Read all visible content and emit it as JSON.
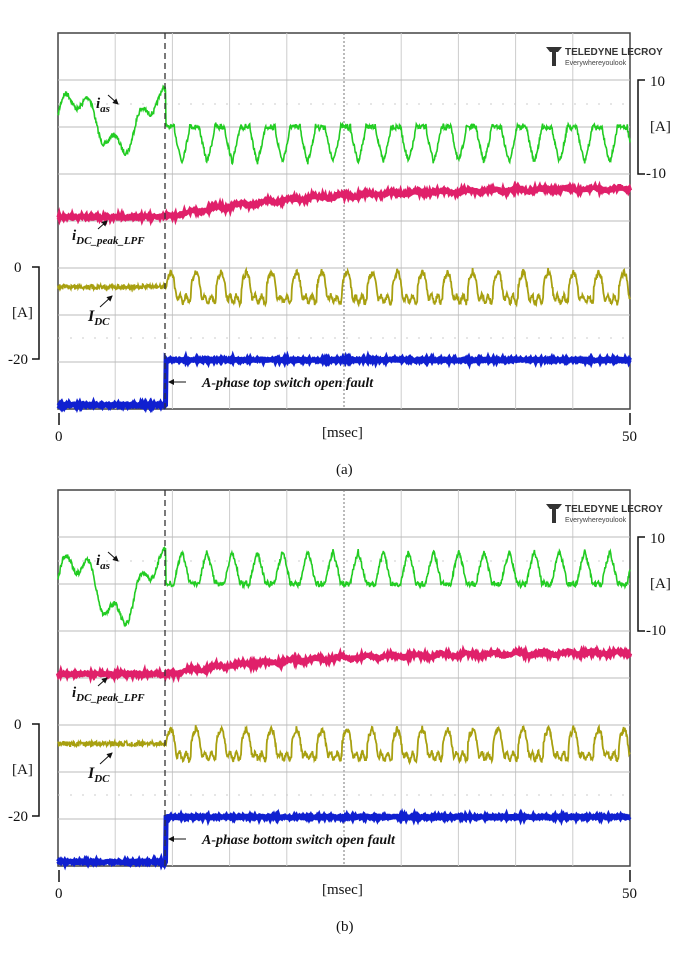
{
  "chart_data": {
    "type": "line",
    "title": "",
    "xlabel": "[msec]",
    "x_ticks": [
      "0",
      "50"
    ],
    "xlim": [
      0,
      50
    ],
    "grid": true,
    "logo": {
      "brand": "TELEDYNE LECROY",
      "tagline": "Everywhereyoulook"
    },
    "right_axis": {
      "ticks": [
        "10",
        "-10"
      ],
      "unit": "[A]",
      "range": [
        -10,
        10
      ]
    },
    "left_axis": {
      "ticks": [
        "0",
        "-20"
      ],
      "unit": "[A]",
      "range": [
        -20,
        0
      ]
    },
    "fundamental_period_ms": 2.2,
    "fault_time_ms": 9.4,
    "panels": [
      {
        "caption": "(a)",
        "fault_label": "A-phase top switch open fault",
        "series": [
          {
            "name": "i",
            "sub": "as",
            "color": "#22cc22",
            "unit": "A",
            "pre_fault_amplitude": 6.5,
            "post_fault": "negative half-cycles only",
            "post_min": -7.5,
            "post_max": 0.5
          },
          {
            "name": "i",
            "sub": "DC_peak_LPF",
            "color": "#e0206a",
            "pre_level": 0,
            "end_level": 6
          },
          {
            "name": "I",
            "sub": "DC",
            "color": "#a8a010",
            "unit": "A",
            "pre_level": -4.3,
            "post_max": 0,
            "post_min": -7
          },
          {
            "name": "fault flag",
            "color": "#1020d0",
            "pre_level": 0,
            "post_level": 1
          }
        ]
      },
      {
        "caption": "(b)",
        "fault_label": "A-phase bottom switch open fault",
        "series": [
          {
            "name": "i",
            "sub": "as",
            "color": "#22cc22",
            "unit": "A",
            "pre_fault_amplitude": 7.5,
            "post_fault": "positive half-cycles only",
            "post_min": -0.5,
            "post_max": 7
          },
          {
            "name": "i",
            "sub": "DC_peak_LPF",
            "color": "#e0206a",
            "pre_level": 0,
            "end_level": 4.5
          },
          {
            "name": "I",
            "sub": "DC",
            "color": "#a8a010",
            "unit": "A",
            "pre_level": -4.3,
            "post_max": 0,
            "post_min": -7
          },
          {
            "name": "fault flag",
            "color": "#1020d0",
            "pre_level": 0,
            "post_level": 1
          }
        ]
      }
    ]
  }
}
